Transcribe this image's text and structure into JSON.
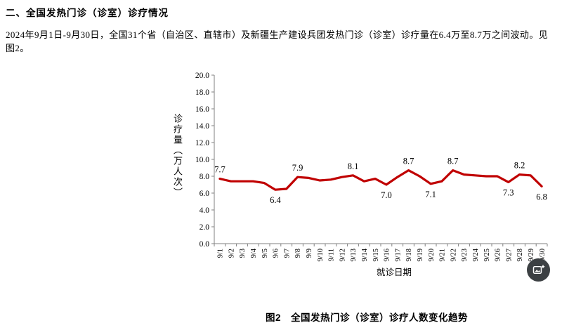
{
  "page": {
    "heading": "二、全国发热门诊（诊室）诊疗情况",
    "paragraph": "2024年9月1日-9月30日，全国31个省（自治区、直辖市）及新疆生产建设兵团发热门诊（诊室）诊疗量在6.4万至8.7万之间波动。见图2。",
    "figure_caption": "图2　全国发热门诊（诊室）诊疗人数变化趋势"
  },
  "icons": {
    "image_search": "image-search-icon"
  },
  "colors": {
    "line": "#c00000",
    "axis": "#808080",
    "text": "#000000",
    "icon_bg": "#3c4043",
    "icon_glyph": "#ffffff"
  },
  "chart_data": {
    "type": "line",
    "title": "图2 全国发热门诊（诊室）诊疗人数变化趋势",
    "xlabel": "就诊日期",
    "ylabel": "诊疗量（万人次）",
    "ylim": [
      0,
      20
    ],
    "y_step": 2,
    "y_tick_format": "one-decimal",
    "grid": false,
    "legend": "none",
    "categories": [
      "9/1",
      "9/2",
      "9/3",
      "9/4",
      "9/5",
      "9/6",
      "9/7",
      "9/8",
      "9/9",
      "9/10",
      "9/11",
      "9/12",
      "9/13",
      "9/14",
      "9/15",
      "9/16",
      "9/17",
      "9/18",
      "9/19",
      "9/20",
      "9/21",
      "9/22",
      "9/23",
      "9/24",
      "9/25",
      "9/26",
      "9/27",
      "9/28",
      "9/29",
      "9/30"
    ],
    "values": [
      7.7,
      7.4,
      7.4,
      7.4,
      7.2,
      6.4,
      6.5,
      7.9,
      7.8,
      7.5,
      7.6,
      7.9,
      8.1,
      7.4,
      7.7,
      7.0,
      7.9,
      8.7,
      8.0,
      7.1,
      7.4,
      8.7,
      8.2,
      8.1,
      8.0,
      8.0,
      7.3,
      8.2,
      8.1,
      6.8
    ],
    "labeled_points": [
      {
        "category": "9/1",
        "label": "7.7",
        "placement": "above"
      },
      {
        "category": "9/6",
        "label": "6.4",
        "placement": "below"
      },
      {
        "category": "9/8",
        "label": "7.9",
        "placement": "above"
      },
      {
        "category": "9/13",
        "label": "8.1",
        "placement": "above"
      },
      {
        "category": "9/16",
        "label": "7.0",
        "placement": "below"
      },
      {
        "category": "9/18",
        "label": "8.7",
        "placement": "above"
      },
      {
        "category": "9/20",
        "label": "7.1",
        "placement": "below"
      },
      {
        "category": "9/22",
        "label": "8.7",
        "placement": "above"
      },
      {
        "category": "9/27",
        "label": "7.3",
        "placement": "below"
      },
      {
        "category": "9/28",
        "label": "8.2",
        "placement": "above"
      },
      {
        "category": "9/30",
        "label": "6.8",
        "placement": "below"
      }
    ]
  }
}
